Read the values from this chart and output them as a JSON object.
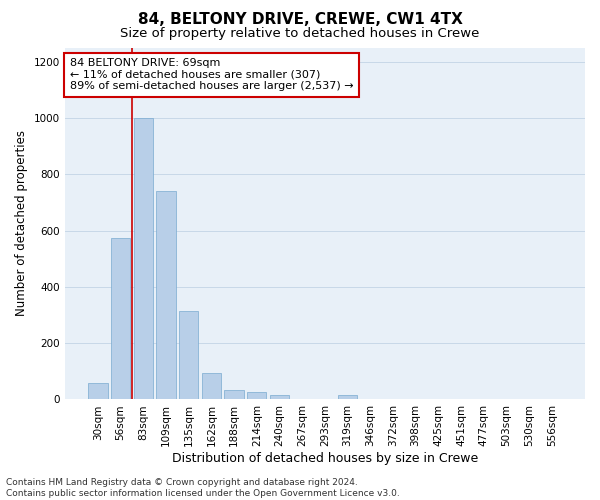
{
  "title1": "84, BELTONY DRIVE, CREWE, CW1 4TX",
  "title2": "Size of property relative to detached houses in Crewe",
  "xlabel": "Distribution of detached houses by size in Crewe",
  "ylabel": "Number of detached properties",
  "categories": [
    "30sqm",
    "56sqm",
    "83sqm",
    "109sqm",
    "135sqm",
    "162sqm",
    "188sqm",
    "214sqm",
    "240sqm",
    "267sqm",
    "293sqm",
    "319sqm",
    "346sqm",
    "372sqm",
    "398sqm",
    "425sqm",
    "451sqm",
    "477sqm",
    "503sqm",
    "530sqm",
    "556sqm"
  ],
  "values": [
    60,
    575,
    1000,
    740,
    315,
    95,
    35,
    25,
    15,
    0,
    0,
    15,
    0,
    0,
    0,
    0,
    0,
    0,
    0,
    0,
    0
  ],
  "bar_color": "#b8cfe8",
  "bar_edge_color": "#7aaad0",
  "vline_x": 1.5,
  "vline_color": "#cc0000",
  "annotation_text": "84 BELTONY DRIVE: 69sqm\n← 11% of detached houses are smaller (307)\n89% of semi-detached houses are larger (2,537) →",
  "annotation_box_color": "#ffffff",
  "annotation_border_color": "#cc0000",
  "ylim": [
    0,
    1250
  ],
  "yticks": [
    0,
    200,
    400,
    600,
    800,
    1000,
    1200
  ],
  "grid_color": "#c8d8e8",
  "bg_color": "#e8f0f8",
  "footer": "Contains HM Land Registry data © Crown copyright and database right 2024.\nContains public sector information licensed under the Open Government Licence v3.0.",
  "title1_fontsize": 11,
  "title2_fontsize": 9.5,
  "xlabel_fontsize": 9,
  "ylabel_fontsize": 8.5,
  "tick_fontsize": 7.5,
  "annotation_fontsize": 8,
  "footer_fontsize": 6.5
}
